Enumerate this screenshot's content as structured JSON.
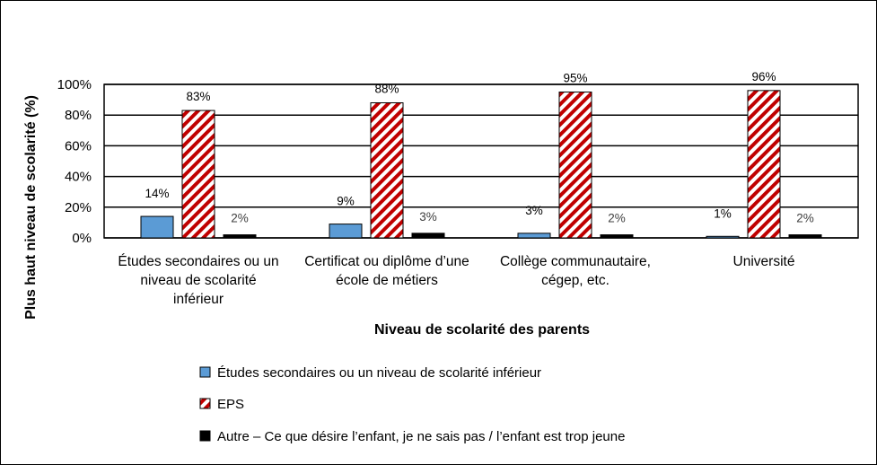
{
  "chart_data": {
    "type": "bar",
    "title": "",
    "xlabel": "Niveau de scolarité des parents",
    "ylabel": "Plus haut niveau de scolarité (%)",
    "ylim": [
      0,
      100
    ],
    "yticks": [
      "0%",
      "20%",
      "40%",
      "60%",
      "80%",
      "100%"
    ],
    "ytick_values": [
      0,
      20,
      40,
      60,
      80,
      100
    ],
    "grid": true,
    "legend_position": "bottom",
    "categories": [
      [
        "Études secondaires ou un",
        "niveau de scolarité",
        "inférieur"
      ],
      [
        "Certificat ou diplôme d’une",
        "école de métiers"
      ],
      [
        "Collège communautaire,",
        "cégep, etc."
      ],
      [
        "Université"
      ]
    ],
    "series": [
      {
        "name": "Études secondaires ou un niveau de scolarité inférieur",
        "values": [
          14,
          9,
          3,
          1
        ],
        "labels": [
          "14%",
          "9%",
          "3%",
          "1%"
        ],
        "color": "#5B9BD5",
        "pattern": "solid"
      },
      {
        "name": "EPS",
        "values": [
          83,
          88,
          95,
          96
        ],
        "labels": [
          "83%",
          "88%",
          "95%",
          "96%"
        ],
        "color": "#C00000",
        "pattern": "diagonal-stripes"
      },
      {
        "name": "Autre – Ce que désire l’enfant, je ne sais pas / l’enfant est trop jeune",
        "values": [
          2,
          3,
          2,
          2
        ],
        "labels": [
          "2%",
          "3%",
          "2%",
          "2%"
        ],
        "color": "#000000",
        "pattern": "solid"
      }
    ]
  }
}
